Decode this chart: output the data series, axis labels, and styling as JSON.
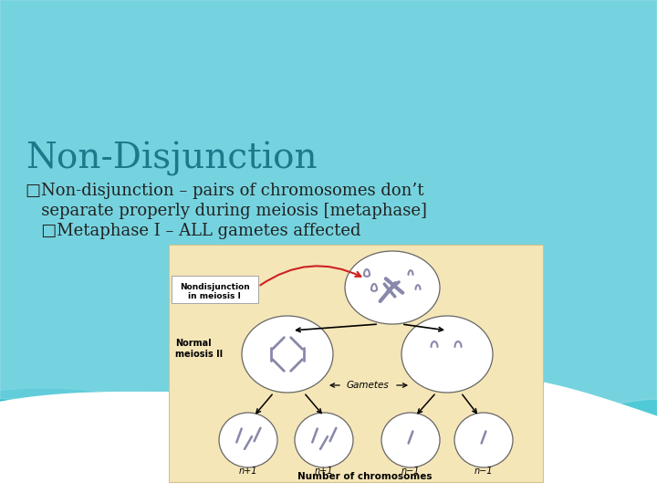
{
  "bg_color": "#ffffff",
  "title": "Non-Disjunction",
  "title_color": "#1a7a8a",
  "title_fontsize": 28,
  "bullet1_line1": "□Non-disjunction – pairs of chromosomes don’t",
  "bullet1_line2": "   separate properly during meiosis [metaphase]",
  "bullet2": "   □Metaphase I – ALL gametes affected",
  "bullet_color": "#222222",
  "bullet_fontsize": 13,
  "chr_color": "#8888aa",
  "diagram_bg": "#f5e6b8",
  "wave_dark": "#2bbccc",
  "wave_mid": "#5ed0dc",
  "wave_light": "#9adde8"
}
